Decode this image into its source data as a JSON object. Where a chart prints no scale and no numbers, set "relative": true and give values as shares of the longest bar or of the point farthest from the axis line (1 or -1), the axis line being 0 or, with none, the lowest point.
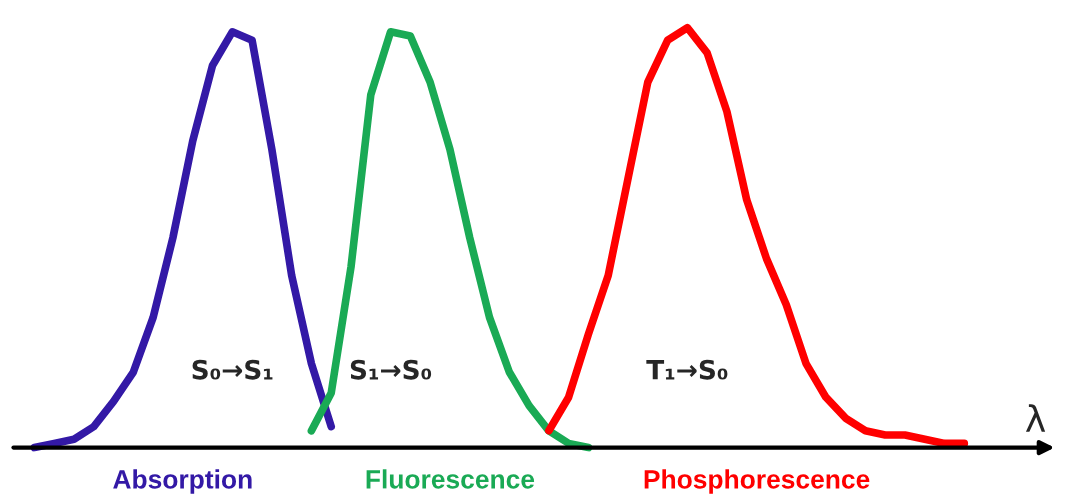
{
  "chart_data": {
    "type": "line",
    "relative": true,
    "xlabel": "λ",
    "categories": [
      null,
      null,
      null,
      null,
      null,
      null,
      null,
      null,
      null,
      null,
      null,
      null,
      null,
      null,
      null,
      null,
      null,
      null,
      null,
      null,
      null,
      null,
      null,
      null,
      null,
      null,
      null,
      null,
      null,
      null,
      null,
      null,
      null,
      null,
      null,
      null,
      null,
      null,
      null,
      null,
      null,
      null,
      null,
      null,
      null,
      null,
      null,
      null
    ],
    "series": [
      {
        "name": "Absorption",
        "color": "#3319a6",
        "values": [
          0.0,
          0.01,
          0.02,
          0.05,
          0.11,
          0.18,
          0.31,
          0.5,
          0.73,
          0.91,
          0.99,
          0.97,
          0.71,
          0.41,
          0.2,
          0.05,
          null,
          null,
          null,
          null,
          null,
          null,
          null,
          null,
          null,
          null,
          null,
          null,
          null,
          null,
          null,
          null,
          null,
          null,
          null,
          null,
          null,
          null,
          null,
          null,
          null,
          null,
          null,
          null,
          null,
          null,
          null,
          null
        ]
      },
      {
        "name": "Fluorescence",
        "color": "#1aaa55",
        "values": [
          null,
          null,
          null,
          null,
          null,
          null,
          null,
          null,
          null,
          null,
          null,
          null,
          null,
          null,
          0.04,
          0.13,
          0.43,
          0.84,
          0.99,
          0.98,
          0.87,
          0.71,
          0.5,
          0.31,
          0.18,
          0.1,
          0.04,
          0.01,
          0.0,
          null,
          null,
          null,
          null,
          null,
          null,
          null,
          null,
          null,
          null,
          null,
          null,
          null,
          null,
          null,
          null,
          null,
          null,
          null
        ]
      },
      {
        "name": "Phosphorescence",
        "color": "#ff0000",
        "values": [
          null,
          null,
          null,
          null,
          null,
          null,
          null,
          null,
          null,
          null,
          null,
          null,
          null,
          null,
          null,
          null,
          null,
          null,
          null,
          null,
          null,
          null,
          null,
          null,
          null,
          null,
          0.04,
          0.12,
          0.27,
          0.41,
          0.64,
          0.87,
          0.97,
          1.0,
          0.94,
          0.8,
          0.59,
          0.45,
          0.34,
          0.2,
          0.12,
          0.07,
          0.04,
          0.03,
          0.03,
          0.02,
          0.01,
          0.01
        ]
      }
    ],
    "annotations": [
      "S₀→S₁",
      "S₁→S₀",
      "T₁→S₀"
    ],
    "legend": false,
    "grid": false,
    "line_style": "solid",
    "marker": "none"
  }
}
